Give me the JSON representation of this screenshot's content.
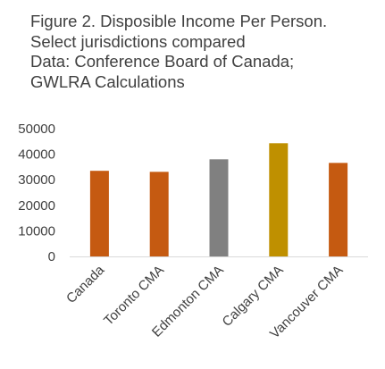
{
  "chart_data": {
    "type": "bar",
    "title_lines": [
      "Figure 2. Disposible Income Per Person.",
      "Select jurisdictions compared",
      "Data: Conference Board of Canada;",
      "GWLRA Calculations"
    ],
    "categories": [
      "Canada",
      "Toronto CMA",
      "Edmonton CMA",
      "Calgary CMA",
      "Vancouver CMA"
    ],
    "values": [
      33500,
      33100,
      38000,
      44300,
      36600
    ],
    "colors": [
      "#C55A11",
      "#C55A11",
      "#808080",
      "#BF9000",
      "#C55A11"
    ],
    "ylim": [
      0,
      50000
    ],
    "yticks": [
      0,
      10000,
      20000,
      30000,
      40000,
      50000
    ],
    "grid": false,
    "legend": "none"
  }
}
